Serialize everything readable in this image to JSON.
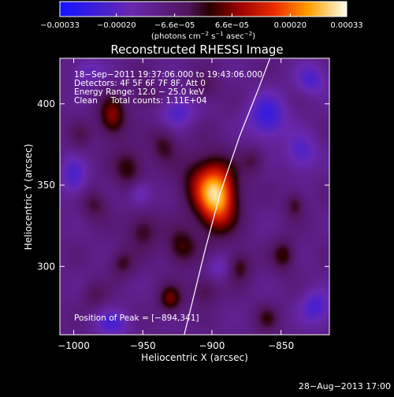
{
  "chart_data": {
    "type": "heatmap",
    "title": "Reconstructed RHESSI Image",
    "xlabel": "Heliocentric X (arcsec)",
    "ylabel": "Heliocentric Y (arcsec)",
    "xlim": [
      -1010,
      -815
    ],
    "ylim": [
      258,
      428
    ],
    "xticks": [
      -1000,
      -950,
      -900,
      -850
    ],
    "xtick_labels": [
      "−1000",
      "−950",
      "−900",
      "−850"
    ],
    "yticks": [
      300,
      350,
      400
    ],
    "ytick_labels": [
      "300",
      "350",
      "400"
    ],
    "colorbar": {
      "range": [
        -0.00033,
        0.00033
      ],
      "ticks": [
        -0.00033,
        -0.0002,
        -6.6e-05,
        6.6e-05,
        0.0002,
        0.00033
      ],
      "tick_labels": [
        "−0.00033",
        "−0.00020",
        "−6.6e−05",
        "6.6e−05",
        "0.00020",
        "0.00033"
      ],
      "label_parts": [
        "(photons cm",
        "−2",
        " s",
        "−1",
        " asec",
        "−2",
        ")"
      ]
    },
    "info_lines": [
      "18−Sep−2011 19:37:06.000 to 19:43:06.000",
      "Detectors: 4F 5F 6F 7F 8F, Att 0",
      "Energy Range: 12.0 − 25.0 keV",
      "Clean     Total counts: 1.11E+04"
    ],
    "peak_label": "Position of Peak = [−894,341]",
    "peak": [
      -894,
      341
    ],
    "limb_line": [
      [
        -920,
        258
      ],
      [
        -905,
        310
      ],
      [
        -894,
        345
      ],
      [
        -880,
        380
      ],
      [
        -866,
        410
      ],
      [
        -858,
        428
      ]
    ],
    "sources": [
      {
        "x": -896,
        "y": 342,
        "amp": 0.00034,
        "sx": 10,
        "sy": 14
      },
      {
        "x": -908,
        "y": 352,
        "amp": 0.00012,
        "sx": 12,
        "sy": 12
      },
      {
        "x": -972,
        "y": 392,
        "amp": 0.00017,
        "sx": 7,
        "sy": 9
      },
      {
        "x": -960,
        "y": 360,
        "amp": 0.00012,
        "sx": 8,
        "sy": 9
      },
      {
        "x": -935,
        "y": 375,
        "amp": 0.0001,
        "sx": 7,
        "sy": 8
      },
      {
        "x": -985,
        "y": 338,
        "amp": 9e-05,
        "sx": 7,
        "sy": 7
      },
      {
        "x": -950,
        "y": 322,
        "amp": 0.00011,
        "sx": 8,
        "sy": 8
      },
      {
        "x": -922,
        "y": 312,
        "amp": 0.00013,
        "sx": 8,
        "sy": 8
      },
      {
        "x": -965,
        "y": 302,
        "amp": 0.0001,
        "sx": 6,
        "sy": 6
      },
      {
        "x": -930,
        "y": 280,
        "amp": 0.00015,
        "sx": 6,
        "sy": 6
      },
      {
        "x": -905,
        "y": 285,
        "amp": 9e-05,
        "sx": 7,
        "sy": 6
      },
      {
        "x": -880,
        "y": 300,
        "amp": 0.00011,
        "sx": 6,
        "sy": 7
      },
      {
        "x": -848,
        "y": 307,
        "amp": 0.00012,
        "sx": 6,
        "sy": 7
      },
      {
        "x": -840,
        "y": 338,
        "amp": 0.0001,
        "sx": 5,
        "sy": 6
      },
      {
        "x": -870,
        "y": 365,
        "amp": 8e-05,
        "sx": 6,
        "sy": 6
      },
      {
        "x": -995,
        "y": 380,
        "amp": 6e-05,
        "sx": 6,
        "sy": 7
      },
      {
        "x": -985,
        "y": 282,
        "amp": 7e-05,
        "sx": 6,
        "sy": 6
      },
      {
        "x": -948,
        "y": 405,
        "amp": 7e-05,
        "sx": 7,
        "sy": 6
      },
      {
        "x": -905,
        "y": 410,
        "amp": 7e-05,
        "sx": 7,
        "sy": 6
      },
      {
        "x": -860,
        "y": 268,
        "amp": 9e-05,
        "sx": 6,
        "sy": 6
      },
      {
        "x": -952,
        "y": 345,
        "amp": -0.00011,
        "sx": 6,
        "sy": 6
      },
      {
        "x": -925,
        "y": 395,
        "amp": -0.00012,
        "sx": 9,
        "sy": 7
      },
      {
        "x": -860,
        "y": 392,
        "amp": -0.00016,
        "sx": 10,
        "sy": 10
      },
      {
        "x": -835,
        "y": 370,
        "amp": -0.00012,
        "sx": 8,
        "sy": 8
      },
      {
        "x": -1000,
        "y": 355,
        "amp": -0.00012,
        "sx": 7,
        "sy": 9
      },
      {
        "x": -895,
        "y": 300,
        "amp": -8e-05,
        "sx": 6,
        "sy": 6
      },
      {
        "x": -972,
        "y": 265,
        "amp": -0.00012,
        "sx": 9,
        "sy": 6
      },
      {
        "x": -825,
        "y": 275,
        "amp": -0.00013,
        "sx": 8,
        "sy": 8
      },
      {
        "x": -828,
        "y": 415,
        "amp": -0.00012,
        "sx": 8,
        "sy": 7
      },
      {
        "x": -990,
        "y": 420,
        "amp": -9e-05,
        "sx": 8,
        "sy": 6
      }
    ]
  },
  "footer": {
    "date": "28−Aug−2013 17:00"
  }
}
